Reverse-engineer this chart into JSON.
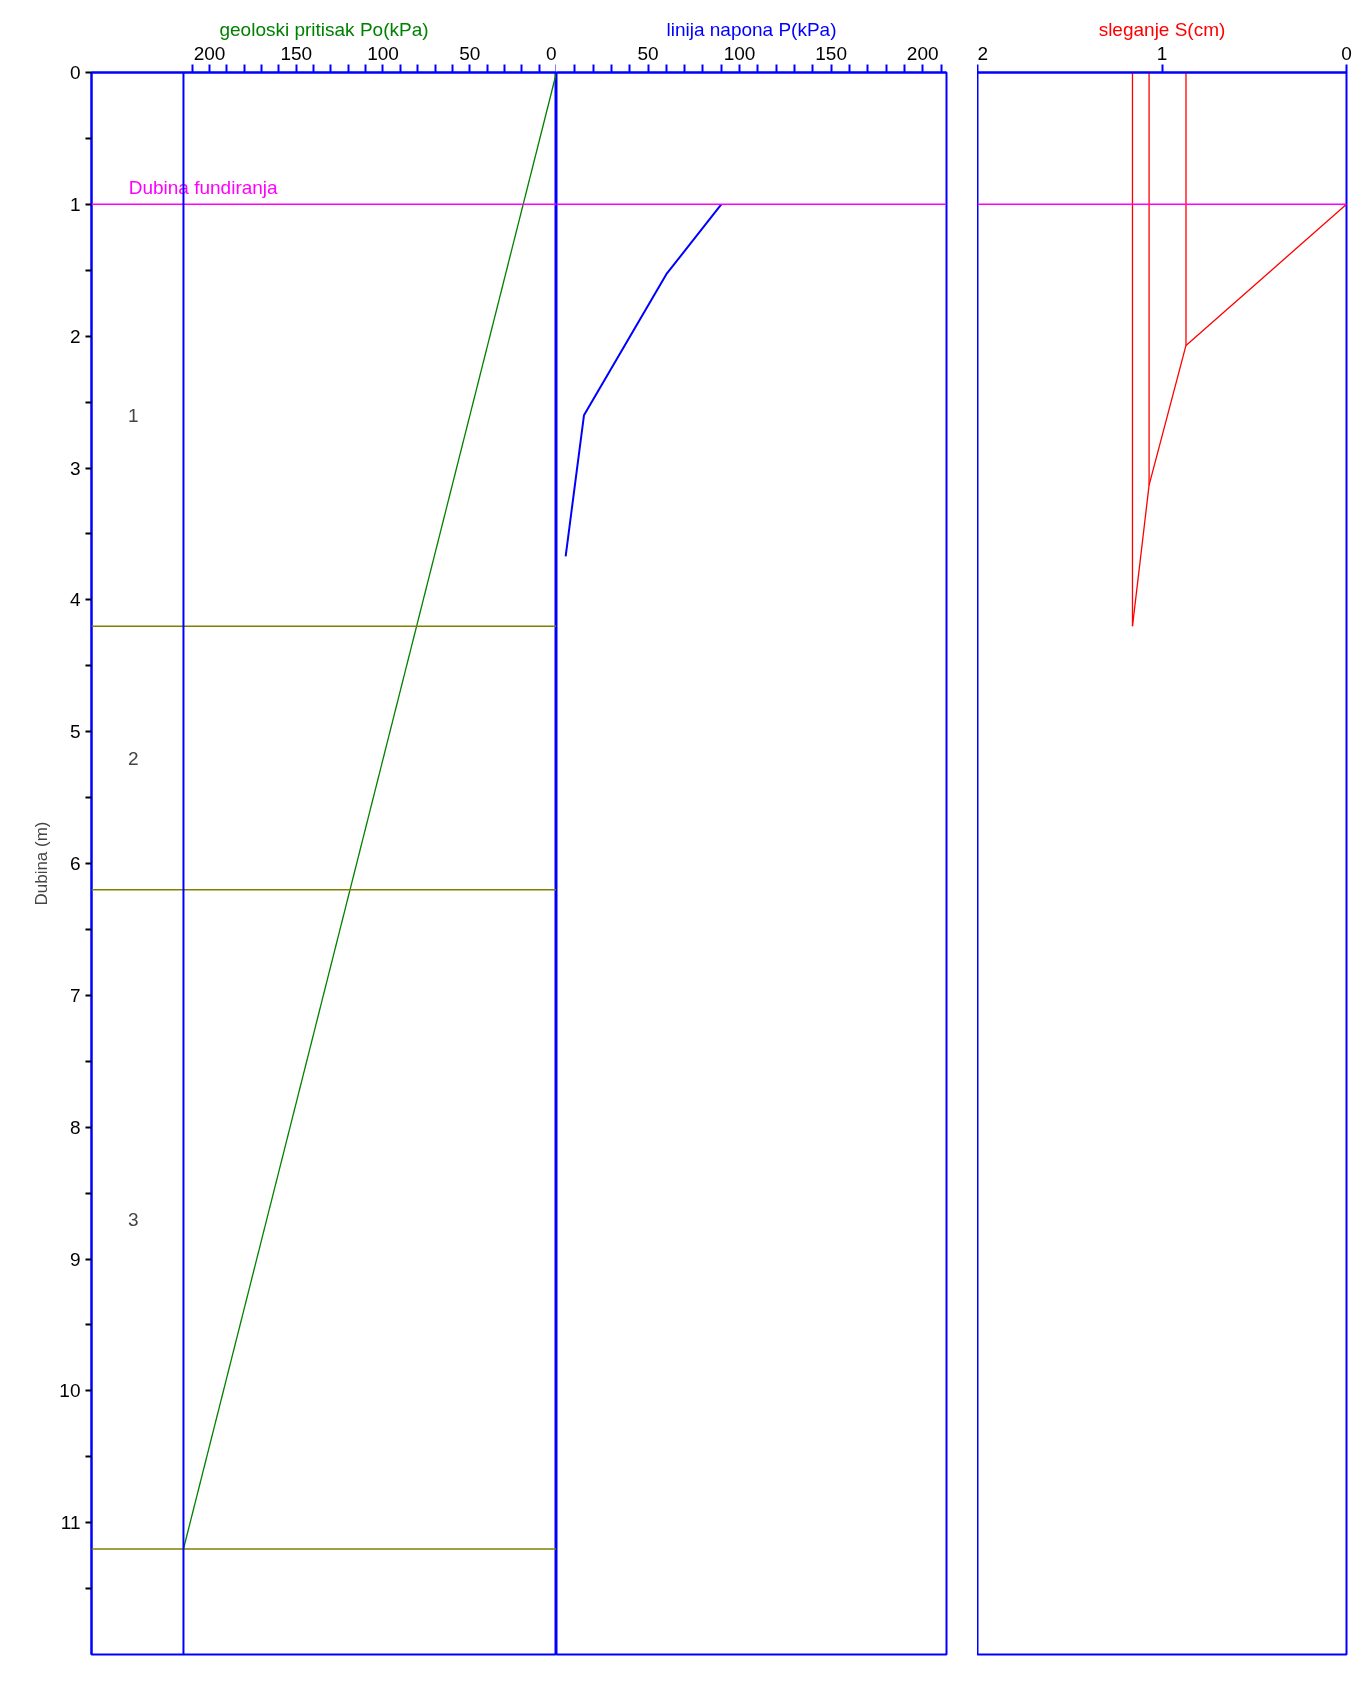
{
  "chart_data": [
    {
      "type": "line",
      "xlabel": "geoloski pritisak Po(kPa)",
      "ylabel": "Dubina (m)",
      "xlim": [
        268,
        0
      ],
      "ylim": [
        12,
        0
      ],
      "xticks": [
        {
          "value": 210,
          "label": null
        },
        200,
        {
          "value": 190,
          "label": null
        },
        {
          "value": 180,
          "label": null
        },
        {
          "value": 170,
          "label": null
        },
        {
          "value": 160,
          "label": null
        },
        150,
        {
          "value": 140,
          "label": null
        },
        {
          "value": 130,
          "label": null
        },
        {
          "value": 120,
          "label": null
        },
        {
          "value": 110,
          "label": null
        },
        100,
        {
          "value": 90,
          "label": null
        },
        {
          "value": 80,
          "label": null
        },
        {
          "value": 70,
          "label": null
        },
        {
          "value": 60,
          "label": null
        },
        50,
        {
          "value": 40,
          "label": null
        },
        {
          "value": 30,
          "label": null
        },
        {
          "value": 20,
          "label": null
        },
        {
          "value": 10,
          "label": null
        },
        0
      ],
      "yticks": [
        0,
        {
          "value": 0.5,
          "label": null
        },
        1,
        {
          "value": 1.5,
          "label": null
        },
        2,
        {
          "value": 2.5,
          "label": null
        },
        3,
        {
          "value": 3.5,
          "label": null
        },
        4,
        {
          "value": 4.5,
          "label": null
        },
        5,
        {
          "value": 5.5,
          "label": null
        },
        6,
        {
          "value": 6.5,
          "label": null
        },
        7,
        {
          "value": 7.5,
          "label": null
        },
        8,
        {
          "value": 8.5,
          "label": null
        },
        9,
        {
          "value": 9.5,
          "label": null
        },
        10,
        {
          "value": 10.5,
          "label": null
        },
        11,
        {
          "value": 11.5,
          "label": null
        }
      ],
      "series": [
        {
          "color": "#008000",
          "x": [
            0,
            215
          ],
          "values": [
            0,
            11.2
          ]
        }
      ],
      "ref_lines": [
        {
          "axis": "y",
          "value": 1,
          "label": "Dubina fundiranja",
          "color": "#ff00ff"
        },
        {
          "axis": "y",
          "value": 4.2,
          "color": "#808000"
        },
        {
          "axis": "y",
          "value": 6.2,
          "color": "#808000"
        },
        {
          "axis": "y",
          "value": 11.2,
          "color": "#808000"
        },
        {
          "axis": "x",
          "value": 215,
          "color": "#0000ff"
        }
      ],
      "annotations": [
        "1",
        "2",
        "3"
      ],
      "grid": false
    },
    {
      "type": "line",
      "xlabel": "linija napona P(kPa)",
      "xlim": [
        0,
        213
      ],
      "ylim": [
        12,
        0
      ],
      "tick_labels": "x",
      "xticks": [
        {
          "value": 10,
          "label": null
        },
        {
          "value": 20,
          "label": null
        },
        {
          "value": 30,
          "label": null
        },
        {
          "value": 40,
          "label": null
        },
        50,
        {
          "value": 60,
          "label": null
        },
        {
          "value": 70,
          "label": null
        },
        {
          "value": 80,
          "label": null
        },
        {
          "value": 90,
          "label": null
        },
        100,
        {
          "value": 110,
          "label": null
        },
        {
          "value": 120,
          "label": null
        },
        {
          "value": 130,
          "label": null
        },
        {
          "value": 140,
          "label": null
        },
        150,
        {
          "value": 160,
          "label": null
        },
        {
          "value": 170,
          "label": null
        },
        {
          "value": 180,
          "label": null
        },
        {
          "value": 190,
          "label": null
        },
        200,
        {
          "value": 210,
          "label": null
        }
      ],
      "series": [
        {
          "color": "#0000ff",
          "x": [
            90,
            60,
            15,
            5
          ],
          "values": [
            1,
            1.53,
            2.6,
            3.67
          ]
        }
      ],
      "ref_lines": [
        {
          "axis": "y",
          "value": 1,
          "color": "#ff00ff"
        }
      ],
      "grid": false
    },
    {
      "type": "line",
      "xlabel": "sleganje S(cm)",
      "xlim": [
        2,
        0
      ],
      "ylim": [
        12,
        0
      ],
      "tick_labels": "x",
      "xticks": [
        2,
        1,
        0
      ],
      "series": [
        {
          "color": "#ff0000",
          "x": [
            0,
            0.87,
            1.07,
            1.16
          ],
          "values": [
            1,
            2.07,
            3.13,
            4.2
          ]
        },
        {
          "color": "#ff0000",
          "x": [
            0.87,
            0.87
          ],
          "values": [
            0,
            2.07
          ]
        },
        {
          "color": "#ff0000",
          "x": [
            1.07,
            1.07
          ],
          "values": [
            0,
            3.13
          ]
        },
        {
          "color": "#ff0000",
          "x": [
            1.16,
            1.16
          ],
          "values": [
            0,
            4.2
          ]
        }
      ],
      "ref_lines": [
        {
          "axis": "y",
          "value": 1,
          "color": "#ff00ff"
        }
      ],
      "grid": false
    }
  ]
}
